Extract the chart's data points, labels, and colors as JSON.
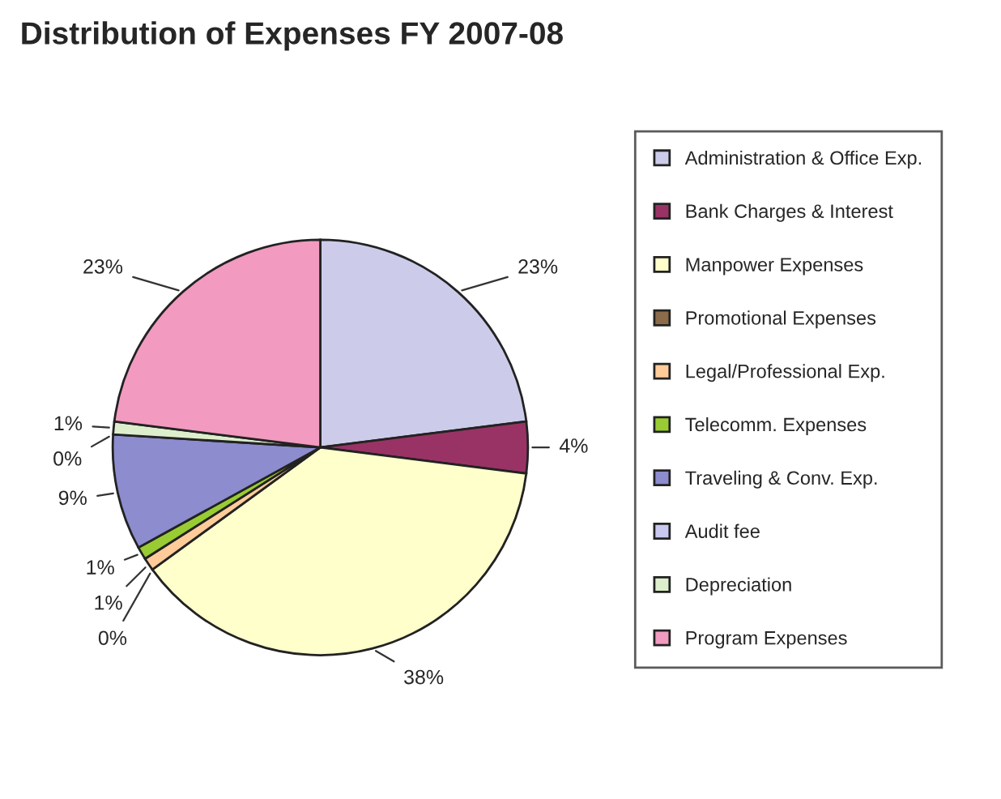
{
  "chart_data": {
    "type": "pie",
    "title": "Distribution of Expenses FY 2007-08",
    "categories": [
      "Administration & Office Exp.",
      "Bank Charges & Interest",
      "Manpower Expenses",
      "Promotional Expenses",
      "Legal/Professional Exp.",
      "Telecomm. Expenses",
      "Traveling & Conv. Exp.",
      "Audit fee",
      "Depreciation",
      "Program Expenses"
    ],
    "values": [
      23,
      4,
      38,
      0,
      1,
      1,
      9,
      0,
      1,
      23
    ],
    "value_labels": [
      "23%",
      "4%",
      "38%",
      "0%",
      "1%",
      "1%",
      "9%",
      "0%",
      "1%",
      "23%"
    ],
    "colors": [
      "#ccccea",
      "#993366",
      "#ffffcc",
      "#8b6b4a",
      "#ffcc99",
      "#99cc33",
      "#8c8cce",
      "#c8c8f0",
      "#ddeecc",
      "#f29ac0"
    ],
    "legend": "right"
  }
}
